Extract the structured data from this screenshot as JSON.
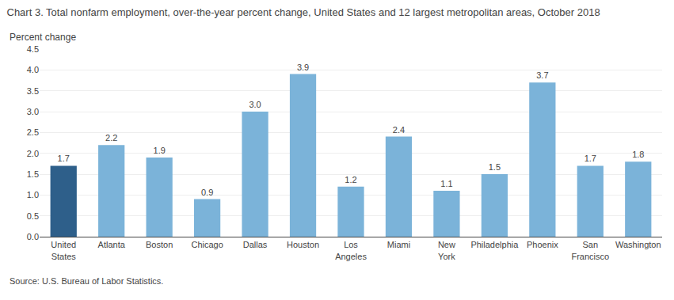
{
  "chart_data": {
    "type": "bar",
    "title": "Chart 3. Total nonfarm employment, over-the-year percent change, United States and 12 largest metropolitan areas, October 2018",
    "ylabel": "Percent change",
    "annotations": [
      "Source: U.S. Bureau of Labor Statistics."
    ],
    "categories": [
      "United\nStates",
      "Atlanta",
      "Boston",
      "Chicago",
      "Dallas",
      "Houston",
      "Los\nAngeles",
      "Miami",
      "New\nYork",
      "Philadelphia",
      "Phoenix",
      "San\nFrancisco",
      "Washington"
    ],
    "values": [
      1.7,
      2.2,
      1.9,
      0.9,
      3.0,
      3.9,
      1.2,
      2.4,
      1.1,
      1.5,
      3.7,
      1.7,
      1.8
    ],
    "value_labels": [
      "1.7",
      "2.2",
      "1.9",
      "0.9",
      "3.0",
      "3.9",
      "1.2",
      "2.4",
      "1.1",
      "1.5",
      "3.7",
      "1.7",
      "1.8"
    ],
    "colors": [
      "#2e5f8a",
      "#7bb3d9",
      "#7bb3d9",
      "#7bb3d9",
      "#7bb3d9",
      "#7bb3d9",
      "#7bb3d9",
      "#7bb3d9",
      "#7bb3d9",
      "#7bb3d9",
      "#7bb3d9",
      "#7bb3d9",
      "#7bb3d9"
    ],
    "data_labels": true,
    "ylim": [
      0,
      4.5
    ],
    "yticks": [
      {
        "value": 0,
        "label": "0.0"
      },
      0.5,
      {
        "value": 1,
        "label": "1.0"
      },
      1.5,
      {
        "value": 2,
        "label": "2.0"
      },
      2.5,
      {
        "value": 3,
        "label": "3.0"
      },
      3.5,
      {
        "value": 4,
        "label": "4.0"
      },
      4.5
    ],
    "grid": true
  }
}
